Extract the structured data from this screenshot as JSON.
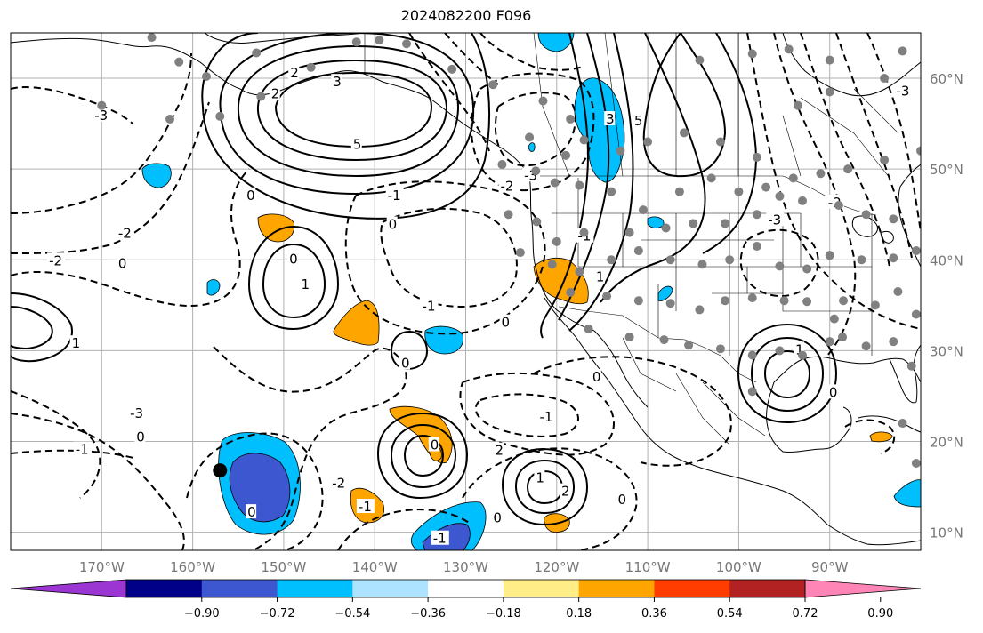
{
  "title": "2024082200 F096",
  "map": {
    "projection": "platecarree",
    "lon_range": [
      -180,
      -80
    ],
    "lat_range": [
      8,
      65
    ],
    "gridlines": true,
    "grid_color": "#b0b0b0",
    "lat_ticks": [
      {
        "value": 10,
        "label": "10°N"
      },
      {
        "value": 20,
        "label": "20°N"
      },
      {
        "value": 30,
        "label": "30°N"
      },
      {
        "value": 40,
        "label": "40°N"
      },
      {
        "value": 50,
        "label": "50°N"
      },
      {
        "value": 60,
        "label": "60°N"
      }
    ],
    "lon_ticks": [
      {
        "value": -170,
        "label": "170°W"
      },
      {
        "value": -160,
        "label": "160°W"
      },
      {
        "value": -150,
        "label": "150°W"
      },
      {
        "value": -140,
        "label": "140°W"
      },
      {
        "value": -130,
        "label": "130°W"
      },
      {
        "value": -120,
        "label": "120°W"
      },
      {
        "value": -110,
        "label": "110°W"
      },
      {
        "value": -100,
        "label": "100°W"
      },
      {
        "value": -90,
        "label": "90°W"
      }
    ],
    "marker": {
      "lon": -157,
      "lat": 16.8,
      "color": "#000000"
    },
    "station_color": "#808080",
    "stations": [
      [
        -164.5,
        64.5
      ],
      [
        -161.5,
        61.8
      ],
      [
        -158.5,
        60.2
      ],
      [
        -153,
        62.8
      ],
      [
        -147,
        61.2
      ],
      [
        -142,
        64
      ],
      [
        -139.5,
        64.2
      ],
      [
        -136.5,
        63.8
      ],
      [
        -131.5,
        61
      ],
      [
        -127,
        59.3
      ],
      [
        -170,
        57
      ],
      [
        -162.5,
        55.5
      ],
      [
        -157,
        55.8
      ],
      [
        -152.5,
        58
      ],
      [
        -121.5,
        57.5
      ],
      [
        -118.5,
        55.5
      ],
      [
        -123,
        53.5
      ],
      [
        -119,
        51.5
      ],
      [
        -117,
        53.2
      ],
      [
        -113,
        52
      ],
      [
        -110,
        53
      ],
      [
        -106,
        54
      ],
      [
        -102,
        53
      ],
      [
        -98,
        51.3
      ],
      [
        -104.3,
        62
      ],
      [
        -98.5,
        62.7
      ],
      [
        -94.5,
        63.2
      ],
      [
        -90,
        62
      ],
      [
        -93.5,
        57
      ],
      [
        -90,
        58.5
      ],
      [
        -84,
        60
      ],
      [
        -82,
        63
      ],
      [
        -126,
        50.5
      ],
      [
        -122.3,
        49.8
      ],
      [
        -120.2,
        48.5
      ],
      [
        -117.5,
        48.2
      ],
      [
        -114,
        47.5
      ],
      [
        -110.5,
        45.5
      ],
      [
        -106.5,
        47.5
      ],
      [
        -103,
        49
      ],
      [
        -100,
        47.5
      ],
      [
        -97,
        48
      ],
      [
        -94,
        49
      ],
      [
        -91,
        49.5
      ],
      [
        -88,
        50
      ],
      [
        -84,
        51
      ],
      [
        -80,
        52
      ],
      [
        -125.3,
        45
      ],
      [
        -122.2,
        44.2
      ],
      [
        -120,
        42
      ],
      [
        -117,
        43
      ],
      [
        -112,
        43
      ],
      [
        -108,
        43.5
      ],
      [
        -105,
        44
      ],
      [
        -101.5,
        44
      ],
      [
        -98,
        45
      ],
      [
        -95.5,
        47
      ],
      [
        -93,
        46.5
      ],
      [
        -89,
        46
      ],
      [
        -86,
        45
      ],
      [
        -83,
        44.5
      ],
      [
        -124,
        40.8
      ],
      [
        -120.5,
        39.5
      ],
      [
        -117.5,
        38.7
      ],
      [
        -114,
        40
      ],
      [
        -111,
        41
      ],
      [
        -107.5,
        40
      ],
      [
        -104,
        39.5
      ],
      [
        -101,
        40
      ],
      [
        -98,
        41.5
      ],
      [
        -95.5,
        39.3
      ],
      [
        -92.5,
        39
      ],
      [
        -90,
        40.5
      ],
      [
        -86.5,
        40
      ],
      [
        -83,
        40.2
      ],
      [
        -80.5,
        41
      ],
      [
        -118.5,
        36.4
      ],
      [
        -114.5,
        36
      ],
      [
        -111,
        35.5
      ],
      [
        -107.5,
        35.2
      ],
      [
        -104.3,
        34.5
      ],
      [
        -101.5,
        35.5
      ],
      [
        -98.5,
        35.8
      ],
      [
        -95,
        35.5
      ],
      [
        -92.5,
        35.4
      ],
      [
        -88.5,
        35.5
      ],
      [
        -85,
        35
      ],
      [
        -82.5,
        36.5
      ],
      [
        -80.5,
        34
      ],
      [
        -116.5,
        32.4
      ],
      [
        -112,
        31.5
      ],
      [
        -108.2,
        31.2
      ],
      [
        -105.5,
        30.6
      ],
      [
        -102,
        30.2
      ],
      [
        -98.5,
        29.5
      ],
      [
        -95.5,
        30
      ],
      [
        -93,
        29.5
      ],
      [
        -90,
        31
      ],
      [
        -86,
        30.5
      ],
      [
        -83,
        31
      ],
      [
        -81,
        28.3
      ],
      [
        -98.5,
        25.5
      ],
      [
        -82,
        22
      ],
      [
        -80.5,
        17.6
      ],
      [
        -88.6,
        31.5
      ],
      [
        -89.5,
        33.5
      ]
    ]
  },
  "colorbar": {
    "colors": [
      "#9b36d2",
      "#000089",
      "#3c57d0",
      "#00bfff",
      "#aee3ff",
      "#ffffff",
      "#ffee88",
      "#ffa500",
      "#ff3d00",
      "#b22222",
      "#ff85b6"
    ],
    "labels": [
      "−0.90",
      "−0.72",
      "−0.54",
      "−0.36",
      "−0.18",
      "0.18",
      "0.36",
      "0.54",
      "0.72",
      "0.90"
    ]
  },
  "contour_labels": [
    {
      "text": "-3",
      "lon": -170.2,
      "lat": 55.8
    },
    {
      "text": "-3",
      "lon": -166.3,
      "lat": 23
    },
    {
      "text": "-2",
      "lon": -175.2,
      "lat": 39.8
    },
    {
      "text": "-1",
      "lon": -172.3,
      "lat": 19
    },
    {
      "text": "0",
      "lon": -167.6,
      "lat": 39.5
    },
    {
      "text": "0",
      "lon": -165.6,
      "lat": 20.4
    },
    {
      "text": "1",
      "lon": -172.7,
      "lat": 30.7
    },
    {
      "text": "-2",
      "lon": -167.6,
      "lat": 42.8
    },
    {
      "text": "0",
      "lon": -153.5,
      "lat": 47
    },
    {
      "text": "0",
      "lon": -148.8,
      "lat": 40
    },
    {
      "text": "1",
      "lon": -147.5,
      "lat": 37.2
    },
    {
      "text": "-1",
      "lon": -138,
      "lat": 47
    },
    {
      "text": "0",
      "lon": -137.9,
      "lat": 43.8
    },
    {
      "text": "-1",
      "lon": -134.2,
      "lat": 34.8
    },
    {
      "text": "0",
      "lon": -136.5,
      "lat": 28.5
    },
    {
      "text": "2",
      "lon": -148.7,
      "lat": 60.5
    },
    {
      "text": "3",
      "lon": -144,
      "lat": 59.5
    },
    {
      "text": "5",
      "lon": -141.8,
      "lat": 52.6
    },
    {
      "text": "2",
      "lon": -150.8,
      "lat": 58.2
    },
    {
      "text": "-2",
      "lon": -125.6,
      "lat": 48
    },
    {
      "text": "-3",
      "lon": -123,
      "lat": 49.2
    },
    {
      "text": "-1",
      "lon": -117.1,
      "lat": 42.5
    },
    {
      "text": "0",
      "lon": -115.5,
      "lat": 27
    },
    {
      "text": "1",
      "lon": -115.1,
      "lat": 38
    },
    {
      "text": "3",
      "lon": -114,
      "lat": 55.4
    },
    {
      "text": "5",
      "lon": -110.9,
      "lat": 55.2
    },
    {
      "text": "-3",
      "lon": -96.2,
      "lat": 44.3
    },
    {
      "text": "-2",
      "lon": -89.6,
      "lat": 46.2
    },
    {
      "text": "-3",
      "lon": -82.1,
      "lat": 58.5
    },
    {
      "text": "-1",
      "lon": -121.3,
      "lat": 22.6
    },
    {
      "text": "0",
      "lon": -125.5,
      "lat": 33
    },
    {
      "text": "1",
      "lon": -121.7,
      "lat": 15.9
    },
    {
      "text": "2",
      "lon": -118.9,
      "lat": 14.4
    },
    {
      "text": "0",
      "lon": -112.7,
      "lat": 13.5
    },
    {
      "text": "0",
      "lon": -133.3,
      "lat": 19.5
    },
    {
      "text": "2",
      "lon": -126.2,
      "lat": 18.9
    },
    {
      "text": "0",
      "lon": -126.4,
      "lat": 11.5
    },
    {
      "text": "-1",
      "lon": -133,
      "lat": 9.2
    },
    {
      "text": "0",
      "lon": -153.4,
      "lat": 12.1
    },
    {
      "text": "1",
      "lon": -93.2,
      "lat": 30
    },
    {
      "text": "0",
      "lon": -89.5,
      "lat": 25.3
    },
    {
      "text": "-2",
      "lon": -144.1,
      "lat": 15.3
    },
    {
      "text": "-1",
      "lon": -141.2,
      "lat": 12.7
    }
  ]
}
